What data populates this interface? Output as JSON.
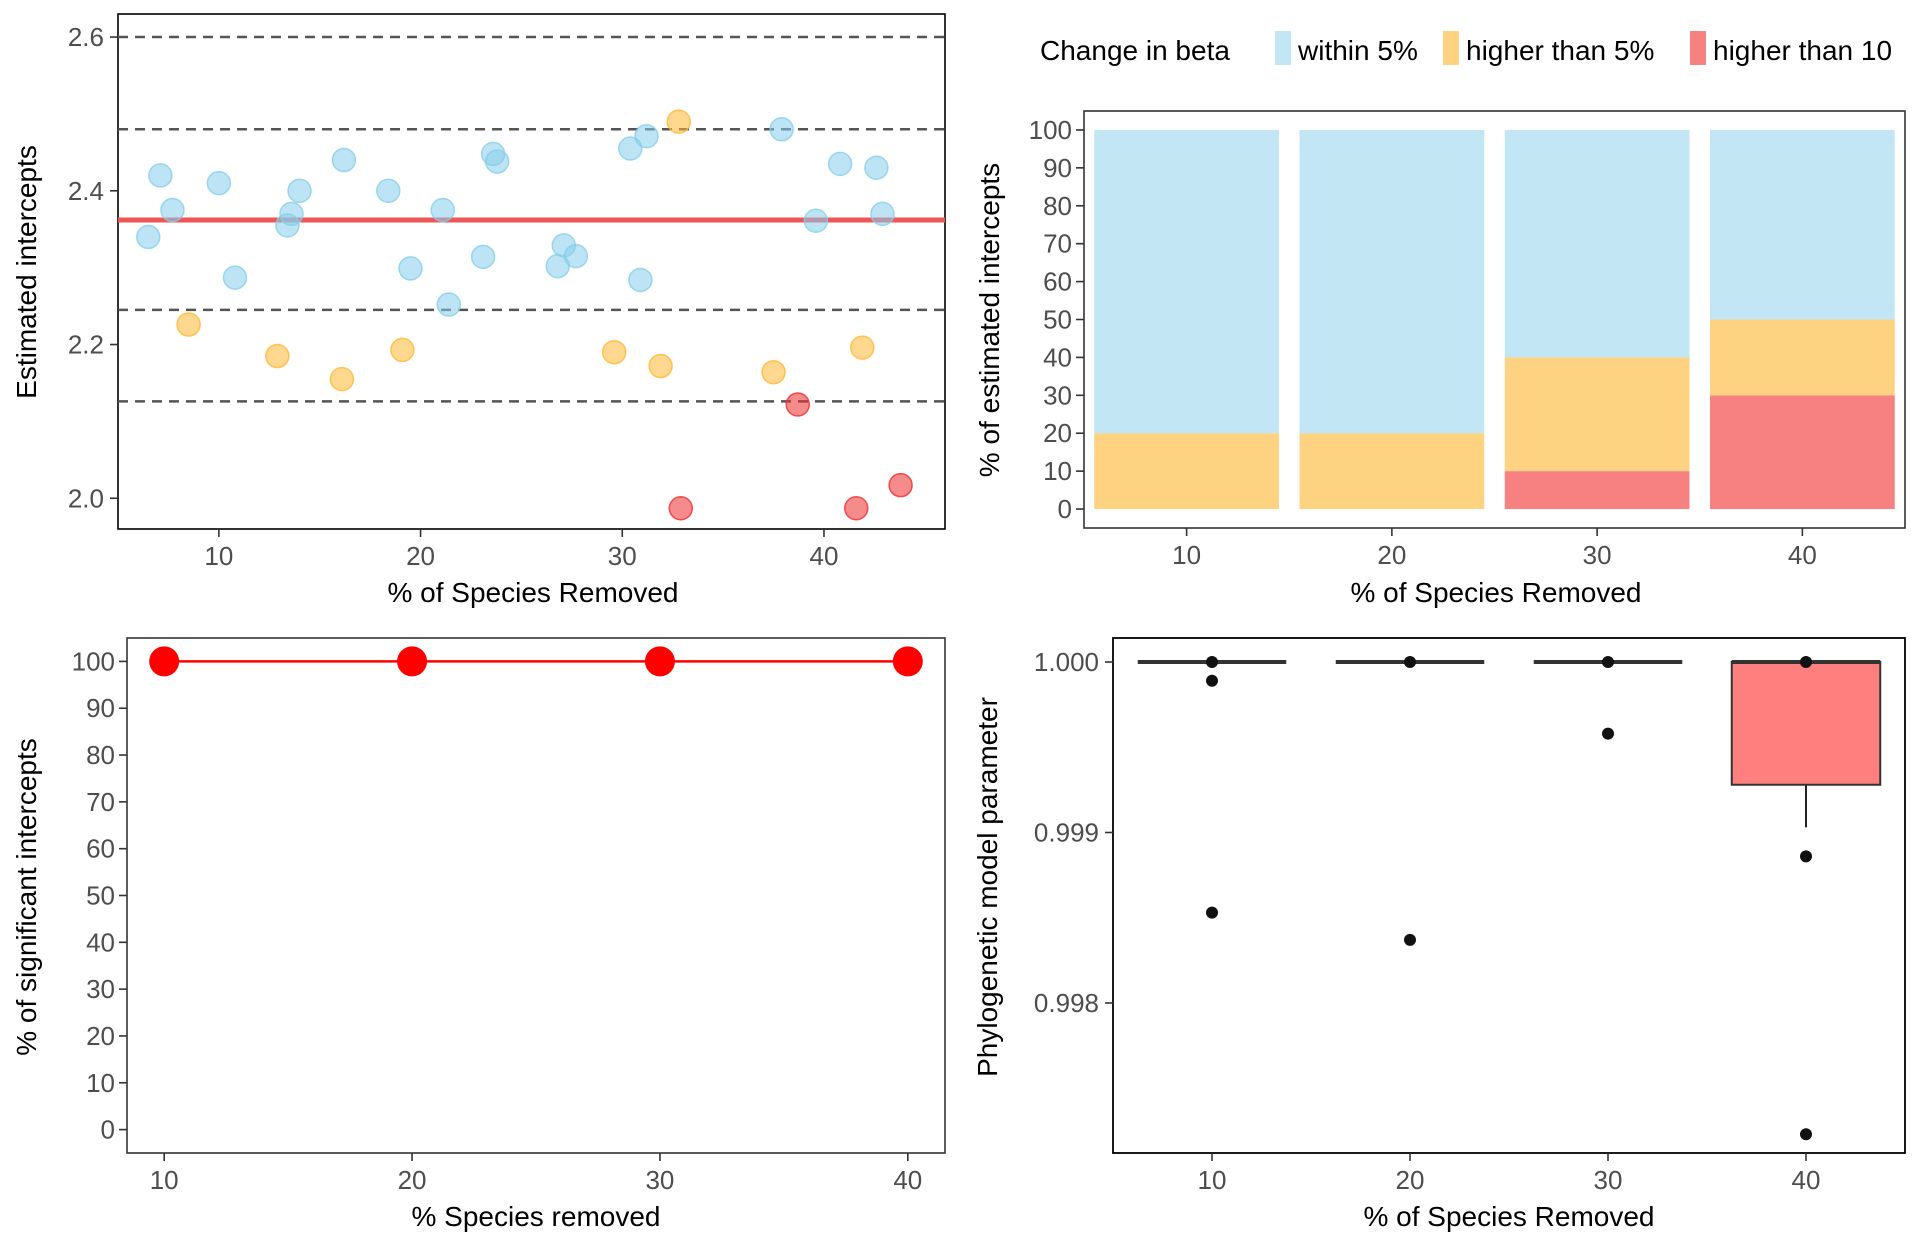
{
  "colors": {
    "within": "#87CEEB",
    "higher5": "#FFB833",
    "higher10": "#EE2C2C",
    "ref_line": "#EE5555",
    "bar_within": "#C2E6F4",
    "bar_higher5": "#FDD382",
    "bar_higher10": "#F78080",
    "sig_line": "#FF0000",
    "box_fill": "#FF7F7F"
  },
  "chart_data": [
    {
      "type": "scatter",
      "xlabel": "% of Species Removed",
      "ylabel": "Estimated intercepts",
      "xlim": [
        5,
        46
      ],
      "ylim": [
        1.96,
        2.63
      ],
      "xticks": [
        10,
        20,
        30,
        40
      ],
      "yticks": [
        2.0,
        2.2,
        2.4,
        2.6
      ],
      "ytick_labels": [
        "2.0",
        "2.2",
        "2.4",
        "2.6"
      ],
      "reference_line": 2.362,
      "dashed_lines": [
        2.6,
        2.48,
        2.245,
        2.126
      ],
      "points": [
        {
          "x": 6.5,
          "y": 2.34,
          "class": "within"
        },
        {
          "x": 7.1,
          "y": 2.42,
          "class": "within"
        },
        {
          "x": 7.7,
          "y": 2.375,
          "class": "within"
        },
        {
          "x": 8.5,
          "y": 2.226,
          "class": "higher5"
        },
        {
          "x": 10.0,
          "y": 2.41,
          "class": "within"
        },
        {
          "x": 10.8,
          "y": 2.287,
          "class": "within"
        },
        {
          "x": 12.9,
          "y": 2.185,
          "class": "higher5"
        },
        {
          "x": 13.4,
          "y": 2.355,
          "class": "within"
        },
        {
          "x": 13.6,
          "y": 2.37,
          "class": "within"
        },
        {
          "x": 14.0,
          "y": 2.4,
          "class": "within"
        },
        {
          "x": 16.1,
          "y": 2.155,
          "class": "higher5"
        },
        {
          "x": 16.2,
          "y": 2.44,
          "class": "within"
        },
        {
          "x": 18.4,
          "y": 2.4,
          "class": "within"
        },
        {
          "x": 19.1,
          "y": 2.193,
          "class": "higher5"
        },
        {
          "x": 19.5,
          "y": 2.299,
          "class": "within"
        },
        {
          "x": 21.1,
          "y": 2.375,
          "class": "within"
        },
        {
          "x": 21.4,
          "y": 2.252,
          "class": "within"
        },
        {
          "x": 23.1,
          "y": 2.314,
          "class": "within"
        },
        {
          "x": 23.6,
          "y": 2.448,
          "class": "within"
        },
        {
          "x": 23.8,
          "y": 2.438,
          "class": "within"
        },
        {
          "x": 26.8,
          "y": 2.302,
          "class": "within"
        },
        {
          "x": 27.1,
          "y": 2.329,
          "class": "within"
        },
        {
          "x": 27.7,
          "y": 2.315,
          "class": "within"
        },
        {
          "x": 29.6,
          "y": 2.19,
          "class": "higher5"
        },
        {
          "x": 30.4,
          "y": 2.455,
          "class": "within"
        },
        {
          "x": 30.9,
          "y": 2.284,
          "class": "within"
        },
        {
          "x": 31.2,
          "y": 2.471,
          "class": "within"
        },
        {
          "x": 31.9,
          "y": 2.172,
          "class": "higher5"
        },
        {
          "x": 32.8,
          "y": 2.49,
          "class": "higher5"
        },
        {
          "x": 32.9,
          "y": 1.987,
          "class": "higher10"
        },
        {
          "x": 37.5,
          "y": 2.164,
          "class": "higher5"
        },
        {
          "x": 37.9,
          "y": 2.48,
          "class": "within"
        },
        {
          "x": 38.7,
          "y": 2.122,
          "class": "higher10"
        },
        {
          "x": 39.6,
          "y": 2.361,
          "class": "within"
        },
        {
          "x": 40.8,
          "y": 2.435,
          "class": "within"
        },
        {
          "x": 41.6,
          "y": 1.987,
          "class": "higher10"
        },
        {
          "x": 41.9,
          "y": 2.196,
          "class": "higher5"
        },
        {
          "x": 42.6,
          "y": 2.43,
          "class": "within"
        },
        {
          "x": 42.9,
          "y": 2.37,
          "class": "within"
        },
        {
          "x": 43.8,
          "y": 2.017,
          "class": "higher10"
        }
      ]
    },
    {
      "type": "bar",
      "stacked": true,
      "xlabel": "% of Species Removed",
      "ylabel": "% of estimated intercepts",
      "categories": [
        "10",
        "20",
        "30",
        "40"
      ],
      "ylim": [
        -5,
        105
      ],
      "yticks": [
        0,
        10,
        20,
        30,
        40,
        50,
        60,
        70,
        80,
        90,
        100
      ],
      "series": [
        {
          "name": "higher than 10%",
          "class": "higher10",
          "values": [
            0,
            0,
            10,
            30
          ]
        },
        {
          "name": "higher than 5%",
          "class": "higher5",
          "values": [
            20,
            20,
            30,
            20
          ]
        },
        {
          "name": "within 5%",
          "class": "within",
          "values": [
            80,
            80,
            60,
            50
          ]
        }
      ],
      "legend": {
        "title": "Change in beta",
        "position": "top",
        "items": [
          "within 5%",
          "higher than 5%",
          "higher than 10"
        ]
      }
    },
    {
      "type": "line",
      "xlabel": "% Species removed",
      "ylabel": "% of significant intercepts",
      "x": [
        10,
        20,
        30,
        40
      ],
      "y": [
        100,
        100,
        100,
        100
      ],
      "xlim": [
        8.5,
        41.5
      ],
      "ylim": [
        -5,
        105
      ],
      "xticks": [
        10,
        20,
        30,
        40
      ],
      "yticks": [
        0,
        10,
        20,
        30,
        40,
        50,
        60,
        70,
        80,
        90,
        100
      ]
    },
    {
      "type": "box",
      "xlabel": "% of Species Removed",
      "ylabel": "Phylogenetic model parameter",
      "categories": [
        "10",
        "20",
        "30",
        "40"
      ],
      "ylim": [
        0.99712,
        1.0
      ],
      "yticks": [
        0.998,
        0.999,
        1.0
      ],
      "ytick_labels": [
        "0.998",
        "0.999",
        "1.000"
      ],
      "boxes": [
        {
          "q1": 1.0,
          "median": 1.0,
          "q3": 1.0,
          "whisker_low": 1.0,
          "whisker_high": 1.0,
          "outliers": [
            1.0,
            0.99989,
            0.99853
          ]
        },
        {
          "q1": 1.0,
          "median": 1.0,
          "q3": 1.0,
          "whisker_low": 1.0,
          "whisker_high": 1.0,
          "outliers": [
            1.0,
            0.99837
          ]
        },
        {
          "q1": 1.0,
          "median": 1.0,
          "q3": 1.0,
          "whisker_low": 1.0,
          "whisker_high": 1.0,
          "outliers": [
            1.0,
            0.99958
          ]
        },
        {
          "q1": 0.99928,
          "median": 1.0,
          "q3": 1.0,
          "whisker_low": 0.99903,
          "whisker_high": 1.0,
          "outliers": [
            1.0,
            0.99886,
            0.99723
          ]
        }
      ]
    }
  ]
}
